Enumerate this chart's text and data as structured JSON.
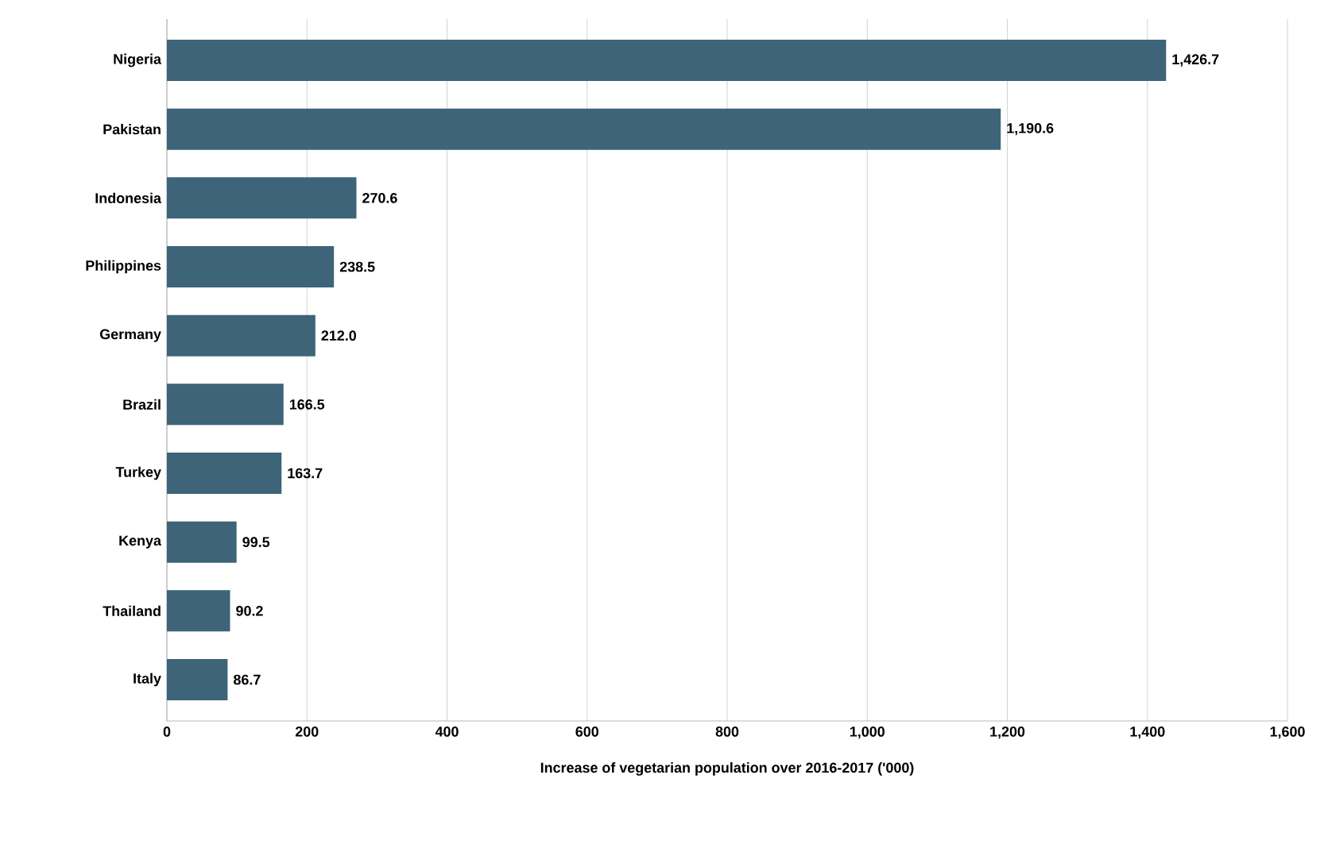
{
  "chart_data": {
    "type": "bar",
    "orientation": "horizontal",
    "categories": [
      "Nigeria",
      "Pakistan",
      "Indonesia",
      "Philippines",
      "Germany",
      "Brazil",
      "Turkey",
      "Kenya",
      "Thailand",
      "Italy"
    ],
    "values": [
      1426.7,
      1190.6,
      270.6,
      238.5,
      212.0,
      166.5,
      163.7,
      99.5,
      90.2,
      86.7
    ],
    "value_labels": [
      "1,426.7",
      "1,190.6",
      "270.6",
      "238.5",
      "212.0",
      "166.5",
      "163.7",
      "99.5",
      "90.2",
      "86.7"
    ],
    "color": "#3d6478",
    "xlabel": "Increase of vegetarian population over 2016-2017 ('000)",
    "xlim": [
      0,
      1600
    ],
    "xticks": [
      0,
      200,
      400,
      600,
      800,
      {
        "value": 1000,
        "label": "1,000"
      },
      {
        "value": 1200,
        "label": "1,200"
      },
      {
        "value": 1400,
        "label": "1,400"
      },
      {
        "value": 1600,
        "label": "1,600"
      }
    ],
    "grid": "x"
  }
}
